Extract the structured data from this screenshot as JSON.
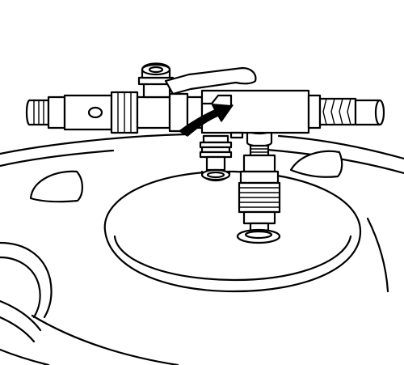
{
  "figure": {
    "kind": "technical-line-illustration",
    "subject": "air-valve-manifold-with-quick-couplers",
    "colors": {
      "stroke": "#000000",
      "fill": "#ffffff"
    },
    "arrow": {
      "direction": "clockwise",
      "icon": "curved-arrow-icon"
    }
  }
}
